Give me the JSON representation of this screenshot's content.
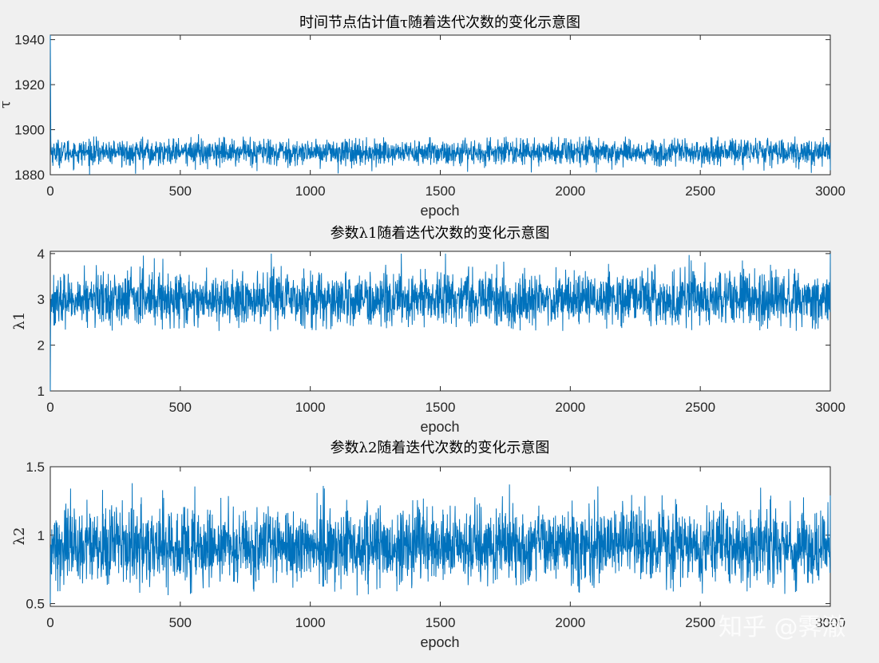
{
  "chart_data": [
    {
      "type": "line",
      "title": "时间节点估计值τ随着迭代次数的变化示意图",
      "xlabel": "epoch",
      "ylabel": "τ",
      "xlim": [
        0,
        3000
      ],
      "ylim": [
        1880,
        1942
      ],
      "xticks": [
        0,
        500,
        1000,
        1500,
        2000,
        2500,
        3000
      ],
      "yticks": [
        1880,
        1900,
        1920,
        1940
      ],
      "grid": false,
      "series_color": "#0072BD",
      "series": [
        {
          "name": "",
          "summary": {
            "start_value": 1942,
            "steady_mean": 1890,
            "steady_min": 1880,
            "steady_max": 1897
          },
          "x": [
            0,
            1,
            2,
            5,
            100,
            200,
            300,
            350,
            400,
            500,
            570,
            700,
            800,
            900,
            1000,
            1100,
            1150,
            1200,
            1300,
            1400,
            1500,
            1600,
            1700,
            1800,
            1850,
            1900,
            2000,
            2100,
            2200,
            2300,
            2400,
            2500,
            2600,
            2700,
            2800,
            2900,
            3000
          ],
          "values": [
            1942,
            1920,
            1895,
            1890,
            1890,
            1889,
            1890,
            1896,
            1889,
            1890,
            1898,
            1891,
            1890,
            1890,
            1889,
            1891,
            1896,
            1890,
            1890,
            1889,
            1890,
            1891,
            1890,
            1889,
            1881,
            1890,
            1890,
            1881,
            1890,
            1889,
            1890,
            1890,
            1891,
            1889,
            1890,
            1891,
            1882
          ]
        }
      ]
    },
    {
      "type": "line",
      "title": "参数λ1随着迭代次数的变化示意图",
      "xlabel": "epoch",
      "ylabel": "λ1",
      "xlim": [
        0,
        3000
      ],
      "ylim": [
        1,
        4.05
      ],
      "xticks": [
        0,
        500,
        1000,
        1500,
        2000,
        2500,
        3000
      ],
      "yticks": [
        1,
        2,
        3,
        4
      ],
      "grid": false,
      "series_color": "#0072BD",
      "series": [
        {
          "name": "",
          "summary": {
            "start_value": 1.0,
            "steady_mean": 3.0,
            "steady_min": 2.3,
            "steady_max": 4.0
          },
          "x": [
            0,
            1,
            3,
            100,
            200,
            400,
            500,
            600,
            800,
            850,
            1000,
            1200,
            1350,
            1500,
            1700,
            2000,
            2200,
            2400,
            2600,
            2800,
            3000
          ],
          "values": [
            1.0,
            2.4,
            3.0,
            3.0,
            3.1,
            3.9,
            3.0,
            3.1,
            2.9,
            4.0,
            3.1,
            3.0,
            4.0,
            3.0,
            3.0,
            3.1,
            2.9,
            3.0,
            3.1,
            3.0,
            4.0
          ]
        }
      ]
    },
    {
      "type": "line",
      "title": "参数λ2随着迭代次数的变化示意图",
      "xlabel": "epoch",
      "ylabel": "λ2",
      "xlim": [
        0,
        3000
      ],
      "ylim": [
        0.48,
        1.5
      ],
      "xticks": [
        0,
        500,
        1000,
        1500,
        2000,
        2500,
        3000
      ],
      "yticks": [
        0.5,
        1,
        1.5
      ],
      "grid": false,
      "series_color": "#0072BD",
      "series": [
        {
          "name": "",
          "summary": {
            "start_value": 0.5,
            "steady_mean": 0.92,
            "steady_min": 0.56,
            "steady_max": 1.38
          },
          "x": [
            0,
            1,
            3,
            100,
            200,
            315,
            400,
            600,
            800,
            1000,
            1050,
            1180,
            1200,
            1400,
            1600,
            1800,
            2000,
            2200,
            2400,
            2600,
            2800,
            3000
          ],
          "values": [
            0.5,
            0.9,
            0.92,
            0.92,
            0.93,
            1.38,
            0.92,
            0.93,
            0.91,
            0.92,
            1.36,
            0.56,
            0.92,
            0.93,
            0.92,
            0.91,
            0.92,
            0.93,
            0.92,
            0.91,
            0.93,
            1.29
          ]
        }
      ]
    }
  ],
  "watermark": "知乎 @霁澈"
}
